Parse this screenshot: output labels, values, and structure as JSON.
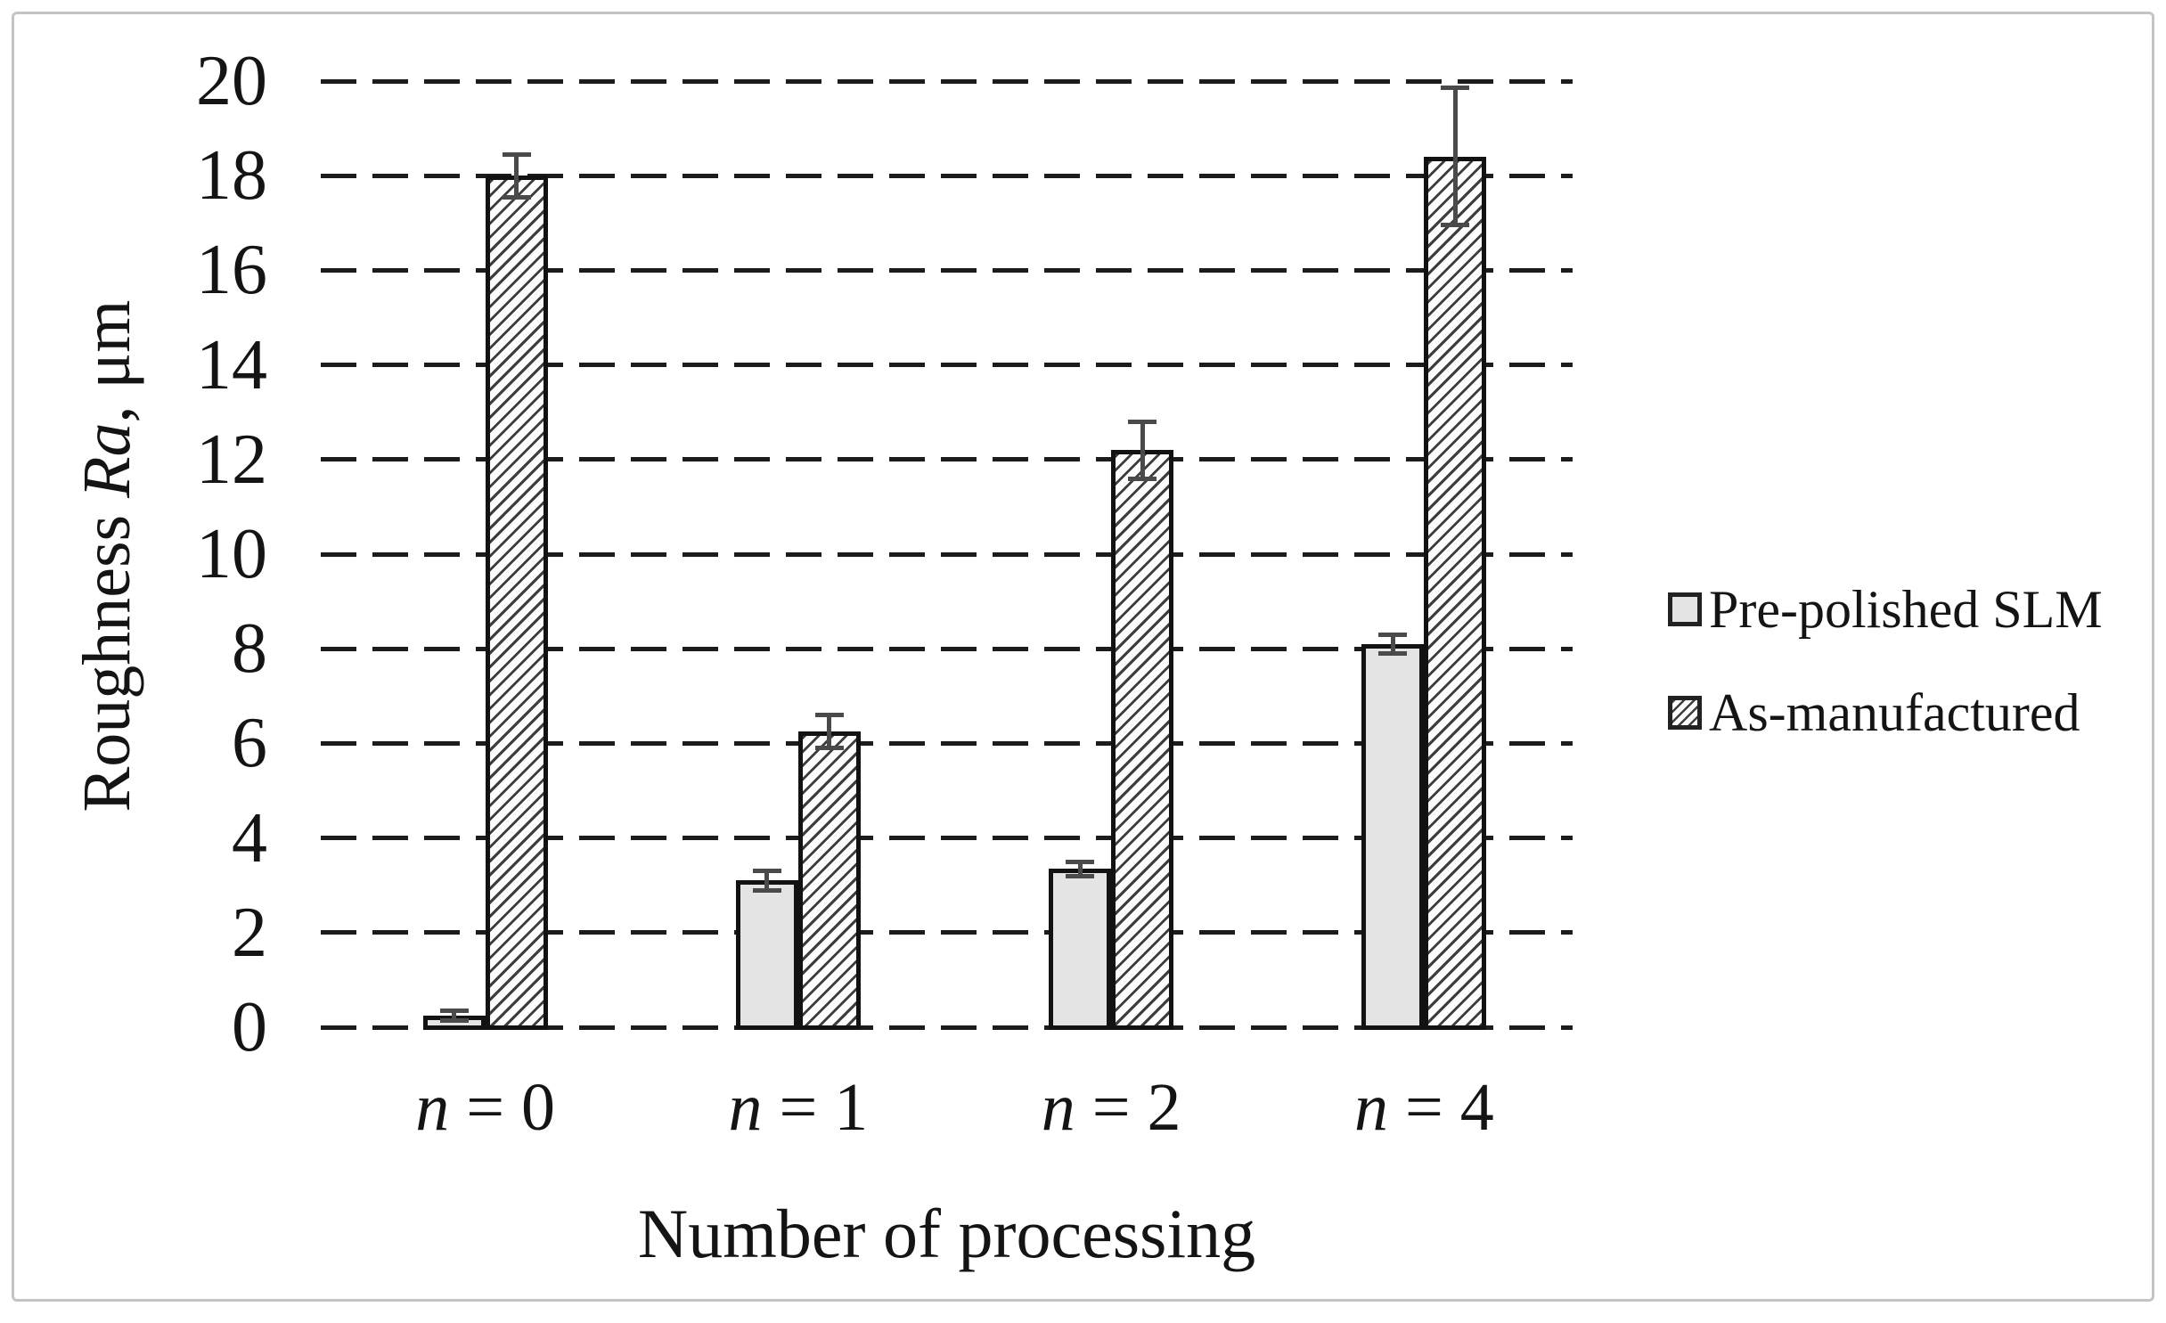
{
  "figure": {
    "kind": "scientific bar chart figure",
    "background": "#ffffff",
    "frame_border_color": "#c4c4c4"
  },
  "colors": {
    "ink": "#1a1a1a",
    "bar_fill_solid": "#e4e4e4",
    "bar_border": "#121212",
    "hatch_line": "#3d3d3d",
    "error_bar": "#4a4a4a",
    "gridline": "#1c1c1c"
  },
  "chart_data": {
    "type": "bar",
    "title": "",
    "categories": [
      "n = 0",
      "n = 1",
      "n = 2",
      "n = 4"
    ],
    "series": [
      {
        "name": "Pre-polished SLM",
        "style": "solid",
        "values": [
          0.25,
          3.1,
          3.35,
          8.1
        ],
        "errors": [
          0.1,
          0.2,
          0.15,
          0.2
        ]
      },
      {
        "name": "As-manufactured",
        "style": "hatch",
        "values": [
          18.0,
          6.25,
          12.2,
          18.4
        ],
        "errors": [
          0.45,
          0.35,
          0.6,
          1.45
        ]
      }
    ],
    "xlabel": "Number of processing",
    "ylabel": "Roughness Ra, μm",
    "ylabel_parts": {
      "prefix": "Roughness ",
      "italic": "Ra",
      "suffix": ", μm"
    },
    "ylim": [
      0,
      20
    ],
    "ytick_step": 2,
    "ytick_labels": [
      "0",
      "2",
      "4",
      "6",
      "8",
      "10",
      "12",
      "14",
      "16",
      "18",
      "20"
    ],
    "grid": "horizontal dashed",
    "legend_position": "right",
    "error_bars": true
  }
}
